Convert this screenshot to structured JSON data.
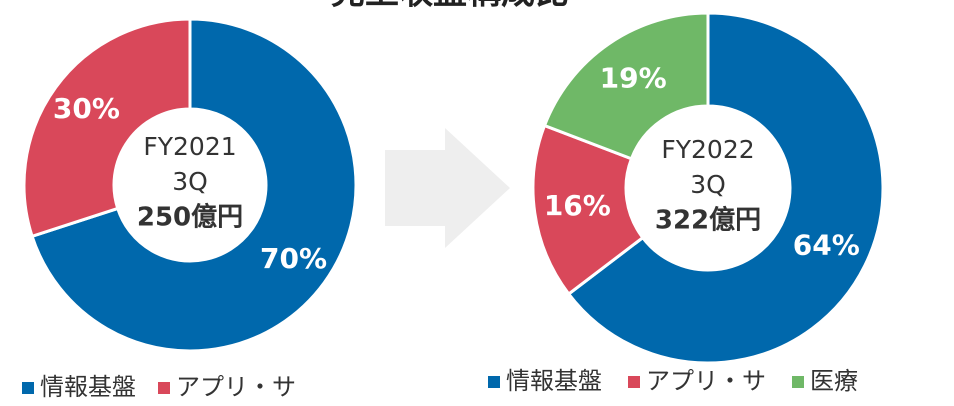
{
  "title": "売上収益構成比",
  "chart_data": [
    {
      "type": "pie",
      "center_text": [
        "FY2021",
        "3Q",
        "250億円"
      ],
      "categories": [
        "情報基盤",
        "アプリ・サ"
      ],
      "values": [
        70,
        30
      ],
      "value_labels": [
        "70%",
        "30%"
      ],
      "colors": [
        "#0068ac",
        "#d9485a"
      ]
    },
    {
      "type": "pie",
      "center_text": [
        "FY2022",
        "3Q",
        "322億円"
      ],
      "categories": [
        "情報基盤",
        "アプリ・サ",
        "医療"
      ],
      "values": [
        64,
        16,
        19
      ],
      "value_labels": [
        "64%",
        "16%",
        "19%"
      ],
      "colors": [
        "#0068ac",
        "#d9485a",
        "#6fb867"
      ]
    }
  ]
}
